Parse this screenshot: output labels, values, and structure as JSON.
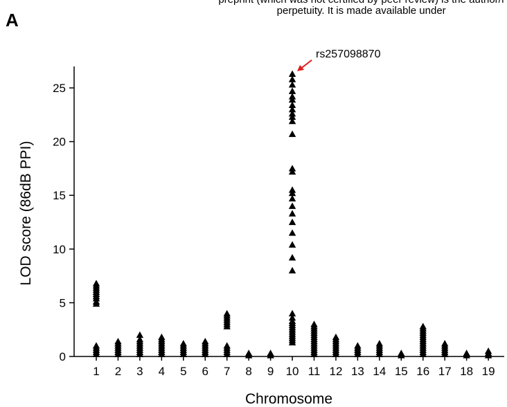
{
  "panel_label": "A",
  "preprint_notice": {
    "line1": "preprint (which was not certified by peer review) is the author/f",
    "line2": "perpetuity. It is made available under"
  },
  "chart_data": {
    "type": "scatter",
    "xlabel": "Chromosome",
    "ylabel": "LOD score (86dB PPI)",
    "ylim": [
      0,
      27
    ],
    "yticks": [
      0,
      5,
      10,
      15,
      20,
      25
    ],
    "categories": [
      "1",
      "2",
      "3",
      "4",
      "5",
      "6",
      "7",
      "8",
      "9",
      "10",
      "11",
      "12",
      "13",
      "14",
      "15",
      "16",
      "17",
      "18",
      "19"
    ],
    "marker": "triangle",
    "marker_color": "#000000",
    "annotation": {
      "label": "rs257098870",
      "chromosome": "10",
      "lod": 26.3,
      "arrow_color": "#e02020"
    },
    "points": [
      {
        "chr": "1",
        "lod": [
          0.2,
          0.4,
          0.6,
          0.8,
          1.0,
          4.9,
          5.1,
          5.4,
          5.6,
          5.8,
          6.0,
          6.2,
          6.4,
          6.6,
          6.8
        ]
      },
      {
        "chr": "2",
        "lod": [
          0.2,
          0.4,
          0.6,
          0.8,
          1.0,
          1.2,
          1.4
        ]
      },
      {
        "chr": "3",
        "lod": [
          0.2,
          0.4,
          0.6,
          0.8,
          1.0,
          1.2,
          1.4,
          1.6,
          2.0
        ]
      },
      {
        "chr": "4",
        "lod": [
          0.2,
          0.4,
          0.6,
          0.8,
          1.0,
          1.2,
          1.4,
          1.6,
          1.8
        ]
      },
      {
        "chr": "5",
        "lod": [
          0.2,
          0.4,
          0.6,
          0.8,
          1.0,
          1.2
        ]
      },
      {
        "chr": "6",
        "lod": [
          0.2,
          0.4,
          0.6,
          0.8,
          1.0,
          1.2,
          1.4
        ]
      },
      {
        "chr": "7",
        "lod": [
          0.2,
          0.4,
          0.6,
          0.8,
          1.0,
          2.8,
          3.0,
          3.2,
          3.4,
          3.6,
          3.8,
          4.0
        ]
      },
      {
        "chr": "8",
        "lod": [
          0.1,
          0.3
        ]
      },
      {
        "chr": "9",
        "lod": [
          0.1,
          0.3
        ]
      },
      {
        "chr": "10",
        "lod": [
          1.3,
          1.5,
          1.7,
          1.9,
          2.1,
          2.3,
          2.5,
          2.7,
          2.9,
          3.1,
          3.3,
          3.6,
          4.0,
          8.0,
          9.2,
          10.4,
          11.5,
          12.5,
          13.3,
          14.0,
          14.7,
          15.2,
          15.5,
          17.2,
          17.5,
          20.7,
          21.9,
          22.3,
          22.6,
          23.0,
          23.4,
          23.9,
          24.2,
          24.7,
          25.3,
          25.8,
          26.3
        ]
      },
      {
        "chr": "11",
        "lod": [
          0.2,
          0.4,
          0.6,
          0.8,
          1.0,
          1.2,
          1.4,
          1.6,
          1.8,
          2.0,
          2.2,
          2.4,
          2.6,
          2.8,
          3.0
        ]
      },
      {
        "chr": "12",
        "lod": [
          0.2,
          0.4,
          0.6,
          0.8,
          1.0,
          1.2,
          1.4,
          1.6,
          1.8
        ]
      },
      {
        "chr": "13",
        "lod": [
          0.2,
          0.4,
          0.6,
          0.8,
          1.0
        ]
      },
      {
        "chr": "14",
        "lod": [
          0.2,
          0.4,
          0.6,
          0.8,
          1.0,
          1.2
        ]
      },
      {
        "chr": "15",
        "lod": [
          0.1,
          0.3
        ]
      },
      {
        "chr": "16",
        "lod": [
          0.2,
          0.4,
          0.6,
          0.8,
          1.0,
          1.2,
          1.4,
          1.6,
          1.8,
          2.0,
          2.2,
          2.4,
          2.6,
          2.8
        ]
      },
      {
        "chr": "17",
        "lod": [
          0.2,
          0.4,
          0.6,
          0.8,
          1.0,
          1.2
        ]
      },
      {
        "chr": "18",
        "lod": [
          0.1,
          0.3
        ]
      },
      {
        "chr": "19",
        "lod": [
          0.1,
          0.3,
          0.5
        ]
      }
    ]
  }
}
